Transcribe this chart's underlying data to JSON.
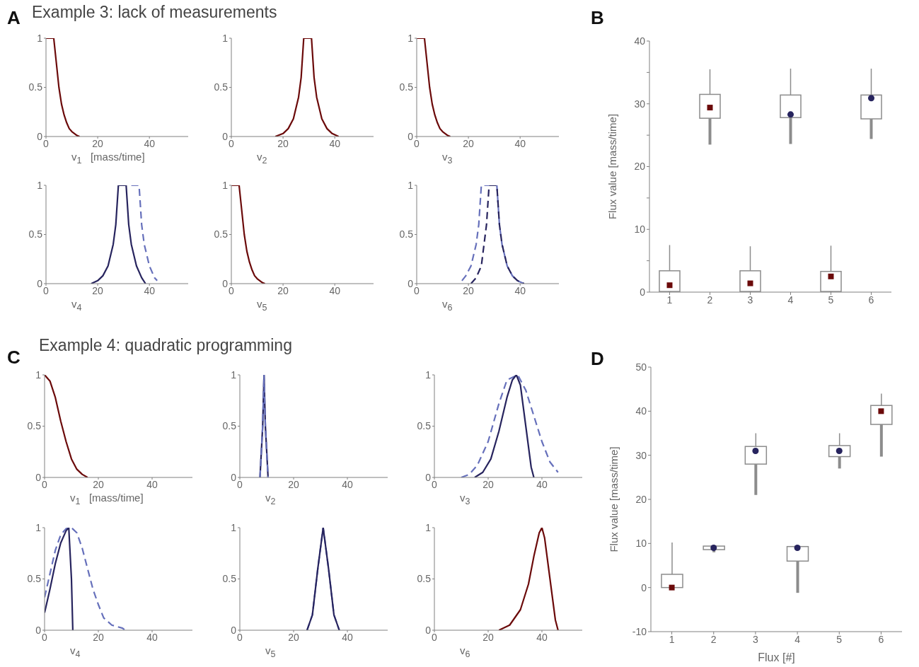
{
  "chart_data": [
    {
      "type": "line",
      "title": "Example 3: lack of measurements",
      "annotations": [
        "A"
      ],
      "xlabel": "v$_{1}$   [mass/time]",
      "xlim": [
        0,
        55
      ],
      "xticks": [
        0,
        20,
        40
      ],
      "ylim": [
        0,
        1
      ],
      "yticks": [
        0,
        0.5,
        1
      ],
      "series": [
        {
          "color": "#6b0a0a",
          "x": [
            0,
            3,
            4,
            5,
            6,
            7,
            8,
            9,
            10,
            11,
            12,
            13
          ],
          "values": [
            1,
            1,
            0.75,
            0.5,
            0.33,
            0.22,
            0.14,
            0.08,
            0.05,
            0.03,
            0.01,
            0
          ]
        }
      ]
    },
    {
      "type": "line",
      "xlabel": "v$_{2}$",
      "xlim": [
        0,
        55
      ],
      "xticks": [
        0,
        20,
        40
      ],
      "ylim": [
        0,
        1
      ],
      "yticks": [
        0,
        0.5,
        1
      ],
      "series": [
        {
          "color": "#6b0a0a",
          "x": [
            17,
            20,
            22,
            24,
            26,
            27,
            28,
            31,
            32,
            33,
            35,
            37,
            39,
            41.5
          ],
          "values": [
            0,
            0.03,
            0.08,
            0.18,
            0.4,
            0.6,
            1,
            1,
            0.6,
            0.4,
            0.18,
            0.08,
            0.03,
            0
          ]
        }
      ]
    },
    {
      "type": "line",
      "xlabel": "v$_{3}$",
      "xlim": [
        0,
        55
      ],
      "xticks": [
        0,
        20,
        40
      ],
      "ylim": [
        0,
        1
      ],
      "yticks": [
        0,
        0.5,
        1
      ],
      "series": [
        {
          "color": "#6b0a0a",
          "x": [
            0,
            3,
            4,
            5,
            6,
            7,
            8,
            9,
            10,
            11,
            12,
            13
          ],
          "values": [
            1,
            1,
            0.75,
            0.5,
            0.33,
            0.22,
            0.14,
            0.08,
            0.05,
            0.03,
            0.01,
            0
          ]
        }
      ]
    },
    {
      "type": "line",
      "xlabel": "v$_{4}$",
      "xlim": [
        0,
        55
      ],
      "xticks": [
        0,
        20,
        40
      ],
      "ylim": [
        0,
        1
      ],
      "yticks": [
        0,
        0.5,
        1
      ],
      "series": [
        {
          "color": "#27245e",
          "x": [
            17.5,
            20,
            22,
            24,
            26,
            27,
            28,
            31,
            32,
            33,
            35,
            37,
            38.5
          ],
          "values": [
            0,
            0.03,
            0.08,
            0.18,
            0.4,
            0.6,
            1,
            1,
            0.6,
            0.4,
            0.18,
            0.06,
            0
          ]
        },
        {
          "color": "#6670bb",
          "line_style": "dashed",
          "x": [
            33,
            36,
            37,
            38,
            40,
            42,
            43
          ],
          "values": [
            1,
            1,
            0.6,
            0.4,
            0.18,
            0.06,
            0.03
          ]
        }
      ]
    },
    {
      "type": "line",
      "xlabel": "v$_{5}$",
      "xlim": [
        0,
        55
      ],
      "xticks": [
        0,
        20,
        40
      ],
      "ylim": [
        0,
        1
      ],
      "yticks": [
        0,
        0.5,
        1
      ],
      "series": [
        {
          "color": "#6b0a0a",
          "x": [
            0,
            3,
            4,
            5,
            6,
            7,
            8,
            9,
            10,
            11,
            12,
            13
          ],
          "values": [
            1,
            1,
            0.75,
            0.5,
            0.33,
            0.22,
            0.14,
            0.08,
            0.05,
            0.03,
            0.01,
            0
          ]
        }
      ]
    },
    {
      "type": "line",
      "xlabel": "v$_{6}$",
      "xlim": [
        0,
        55
      ],
      "xticks": [
        0,
        20,
        40
      ],
      "ylim": [
        0,
        1
      ],
      "yticks": [
        0,
        0.5,
        1
      ],
      "series": [
        {
          "color": "#6670bb",
          "line_style": "dashed",
          "x": [
            17.5,
            19,
            21,
            23,
            24,
            25,
            31,
            32,
            33,
            35,
            37,
            39,
            41.5
          ],
          "values": [
            0.03,
            0.08,
            0.18,
            0.4,
            0.6,
            1,
            1,
            0.6,
            0.4,
            0.18,
            0.08,
            0.03,
            0
          ]
        },
        {
          "color": "#27245e",
          "line_style": "dashed",
          "x": [
            21,
            23,
            25,
            27,
            28,
            31,
            32,
            33,
            35,
            37,
            39,
            41.5
          ],
          "values": [
            0,
            0.06,
            0.18,
            0.6,
            1,
            1,
            0.6,
            0.4,
            0.18,
            0.08,
            0.03,
            0
          ]
        }
      ]
    },
    {
      "type": "box",
      "annotations": [
        "B"
      ],
      "ylabel": "Flux value [mass/time]",
      "categories": [
        "1",
        "2",
        "3",
        "4",
        "5",
        "6"
      ],
      "ylim": [
        0,
        40
      ],
      "yticks": [
        0,
        {
          "value": 5,
          "label": null
        },
        10,
        {
          "value": 15,
          "label": null
        },
        20,
        {
          "value": 25,
          "label": null
        },
        30,
        {
          "value": 35,
          "label": null
        },
        40
      ],
      "boxes": [
        {
          "low": 0,
          "q1": 0.1,
          "q3": 3.4,
          "high": 7.5
        },
        {
          "low": 23.5,
          "q1": 27.7,
          "q3": 31.5,
          "high": 35.5
        },
        {
          "low": 0,
          "q1": 0.1,
          "q3": 3.4,
          "high": 7.3
        },
        {
          "low": 23.6,
          "q1": 27.8,
          "q3": 31.4,
          "high": 35.6
        },
        {
          "low": 0,
          "q1": 0.1,
          "q3": 3.3,
          "high": 7.4
        },
        {
          "low": 24.4,
          "q1": 27.6,
          "q3": 31.4,
          "high": 35.6
        }
      ],
      "series": [
        {
          "type": "scatter",
          "marker": "square",
          "color": "#6b0a0a",
          "x": [
            "1",
            "2",
            "3",
            "4",
            "5",
            "6"
          ],
          "values": [
            1.1,
            29.4,
            1.4,
            null,
            2.5,
            null
          ]
        },
        {
          "type": "scatter",
          "marker": "circle",
          "color": "#27245e",
          "x": [
            "1",
            "2",
            "3",
            "4",
            "5",
            "6"
          ],
          "values": [
            null,
            null,
            null,
            28.3,
            null,
            30.9
          ]
        }
      ]
    },
    {
      "type": "line",
      "title": "Example 4: quadratic programming",
      "annotations": [
        "C"
      ],
      "xlabel": "v$_{1}$   [mass/time]",
      "xlim": [
        0,
        55
      ],
      "xticks": [
        0,
        20,
        40
      ],
      "ylim": [
        0,
        1
      ],
      "yticks": [
        0,
        0.5,
        1
      ],
      "series": [
        {
          "color": "#6b0a0a",
          "x": [
            0,
            2,
            4,
            6,
            8,
            10,
            12,
            14,
            16
          ],
          "values": [
            1,
            0.94,
            0.78,
            0.55,
            0.35,
            0.18,
            0.08,
            0.03,
            0
          ]
        }
      ]
    },
    {
      "type": "line",
      "xlabel": "v$_{2}$",
      "xlim": [
        0,
        55
      ],
      "xticks": [
        0,
        20,
        40
      ],
      "ylim": [
        0,
        1
      ],
      "yticks": [
        0,
        0.5,
        1
      ],
      "series": [
        {
          "color": "#27245e",
          "x": [
            7.5,
            8.5,
            9,
            9.5,
            10.5
          ],
          "values": [
            0,
            0.5,
            1,
            0.5,
            0
          ]
        },
        {
          "color": "#6670bb",
          "line_style": "dashed",
          "x": [
            7.5,
            8.5,
            9,
            9.5,
            10.5
          ],
          "values": [
            0,
            0.5,
            1,
            0.5,
            0
          ]
        }
      ]
    },
    {
      "type": "line",
      "xlabel": "v$_{3}$",
      "xlim": [
        0,
        55
      ],
      "xticks": [
        0,
        20,
        40
      ],
      "ylim": [
        0,
        1
      ],
      "yticks": [
        0,
        0.5,
        1
      ],
      "series": [
        {
          "color": "#6670bb",
          "line_style": "dashed",
          "x": [
            10,
            13,
            16,
            20,
            24,
            27,
            31,
            34,
            37,
            40,
            43,
            46
          ],
          "values": [
            0,
            0.03,
            0.12,
            0.35,
            0.72,
            0.95,
            1,
            0.85,
            0.6,
            0.35,
            0.15,
            0.05
          ]
        },
        {
          "color": "#27245e",
          "x": [
            15,
            18,
            21,
            24,
            27,
            29,
            30.5,
            32,
            34,
            36,
            37
          ],
          "values": [
            0,
            0.05,
            0.18,
            0.45,
            0.78,
            0.95,
            1,
            0.9,
            0.5,
            0.1,
            0
          ]
        }
      ]
    },
    {
      "type": "line",
      "xlabel": "v$_{4}$",
      "xlim": [
        0,
        55
      ],
      "xticks": [
        0,
        20,
        40
      ],
      "ylim": [
        0,
        1
      ],
      "yticks": [
        0,
        0.5,
        1
      ],
      "series": [
        {
          "color": "#6670bb",
          "line_style": "dashed",
          "x": [
            0,
            2,
            4,
            6,
            8,
            10,
            12,
            14,
            16,
            18,
            20,
            22,
            25,
            29,
            30
          ],
          "values": [
            0.32,
            0.55,
            0.78,
            0.93,
            0.99,
            1,
            0.95,
            0.8,
            0.6,
            0.4,
            0.25,
            0.12,
            0.05,
            0.02,
            0
          ]
        },
        {
          "color": "#27245e",
          "x": [
            0,
            2,
            4,
            6,
            8,
            9,
            10,
            10.5
          ],
          "values": [
            0.17,
            0.4,
            0.65,
            0.85,
            0.97,
            1,
            0.5,
            0
          ]
        }
      ]
    },
    {
      "type": "line",
      "xlabel": "v$_{5}$",
      "xlim": [
        0,
        55
      ],
      "xticks": [
        0,
        20,
        40
      ],
      "ylim": [
        0,
        1
      ],
      "yticks": [
        0,
        0.5,
        1
      ],
      "series": [
        {
          "color": "#6670bb",
          "line_style": "dashed",
          "x": [
            25,
            27,
            29,
            31,
            33,
            35,
            37
          ],
          "values": [
            0,
            0.15,
            0.6,
            1,
            0.6,
            0.15,
            0
          ]
        },
        {
          "color": "#27245e",
          "x": [
            25,
            27,
            29,
            31,
            33,
            35,
            37
          ],
          "values": [
            0,
            0.15,
            0.6,
            1,
            0.6,
            0.15,
            0
          ]
        }
      ]
    },
    {
      "type": "line",
      "xlabel": "v$_{6}$",
      "xlim": [
        0,
        55
      ],
      "xticks": [
        0,
        20,
        40
      ],
      "ylim": [
        0,
        1
      ],
      "yticks": [
        0,
        0.5,
        1
      ],
      "series": [
        {
          "color": "#6b0a0a",
          "x": [
            24,
            28,
            32,
            35,
            37,
            39,
            40,
            41,
            43,
            45,
            46
          ],
          "values": [
            0,
            0.05,
            0.2,
            0.45,
            0.72,
            0.95,
            1,
            0.9,
            0.5,
            0.1,
            0
          ]
        }
      ]
    },
    {
      "type": "box",
      "annotations": [
        "D"
      ],
      "xlabel": "Flux [#]",
      "ylabel": "Flux value [mass/time]",
      "categories": [
        "1",
        "2",
        "3",
        "4",
        "5",
        "6"
      ],
      "ylim": [
        -10,
        50
      ],
      "yticks": [
        -10,
        0,
        10,
        20,
        30,
        40,
        50
      ],
      "boxes": [
        {
          "low": 0,
          "q1": 0,
          "q3": 3,
          "high": 10.2
        },
        {
          "low": 8,
          "q1": 8.6,
          "q3": 9.4,
          "high": 9.4
        },
        {
          "low": 21,
          "q1": 28,
          "q3": 32,
          "high": 35
        },
        {
          "low": -1.2,
          "q1": 6,
          "q3": 9.3,
          "high": 9.3
        },
        {
          "low": 27,
          "q1": 29.7,
          "q3": 32.2,
          "high": 35
        },
        {
          "low": 29.7,
          "q1": 37,
          "q3": 41.3,
          "high": 44
        }
      ],
      "series": [
        {
          "type": "scatter",
          "marker": "square",
          "color": "#6b0a0a",
          "x": [
            "1",
            "2",
            "3",
            "4",
            "5",
            "6"
          ],
          "values": [
            0,
            null,
            null,
            null,
            null,
            40
          ]
        },
        {
          "type": "scatter",
          "marker": "circle",
          "color": "#27245e",
          "x": [
            "1",
            "2",
            "3",
            "4",
            "5",
            "6"
          ],
          "values": [
            null,
            9,
            31,
            9,
            31,
            null
          ]
        }
      ]
    }
  ]
}
